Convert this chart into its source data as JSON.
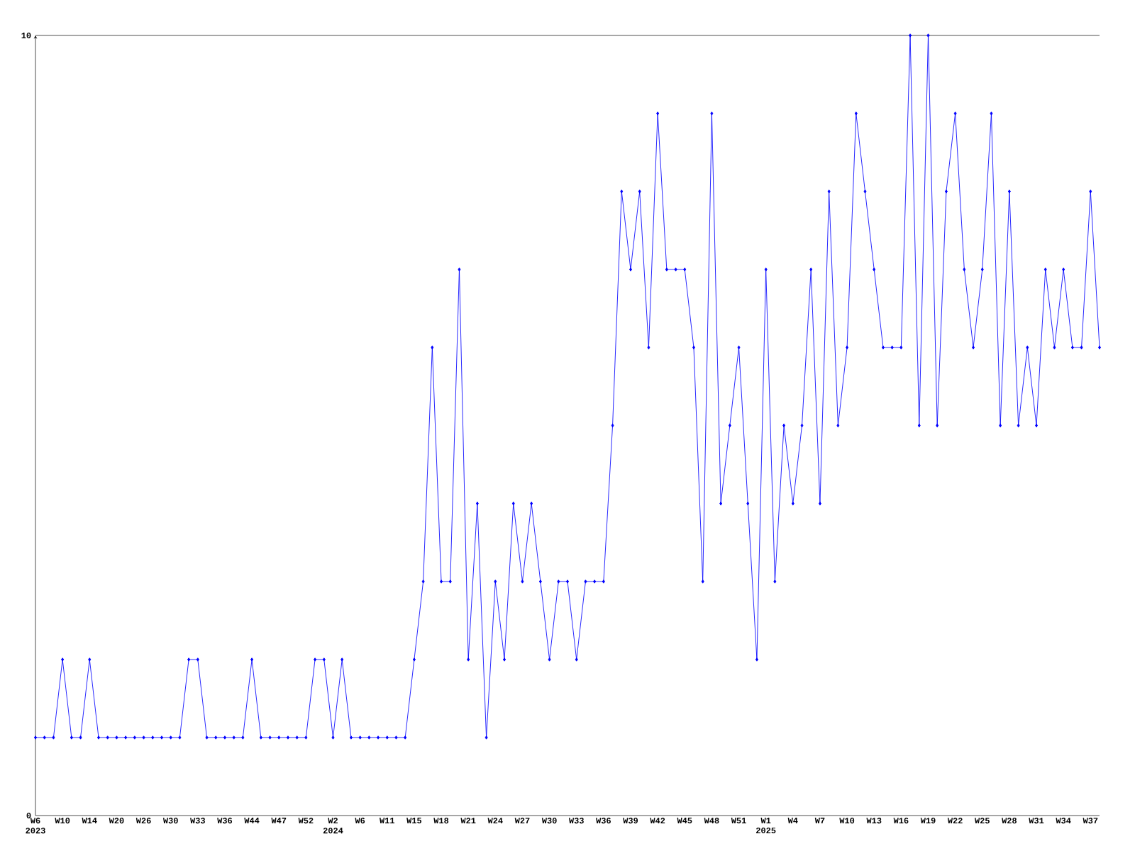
{
  "chart_data": {
    "type": "line",
    "categories": [
      "W6 2023",
      null,
      null,
      "W10",
      null,
      null,
      "W14",
      null,
      null,
      "W20",
      null,
      null,
      "W26",
      null,
      null,
      "W30",
      null,
      null,
      "W33",
      null,
      null,
      "W36",
      null,
      null,
      "W44",
      null,
      null,
      "W47",
      null,
      null,
      "W52",
      null,
      null,
      "W2 2024",
      null,
      null,
      "W6",
      null,
      null,
      "W11",
      null,
      null,
      "W15",
      null,
      null,
      "W18",
      null,
      null,
      "W21",
      null,
      null,
      "W24",
      null,
      null,
      "W27",
      null,
      null,
      "W30",
      null,
      null,
      "W33",
      null,
      null,
      "W36",
      null,
      null,
      "W39",
      null,
      null,
      "W42",
      null,
      null,
      "W45",
      null,
      null,
      "W48",
      null,
      null,
      "W51",
      null,
      null,
      "W1 2025",
      null,
      null,
      "W4",
      null,
      null,
      "W7",
      null,
      null,
      "W10",
      null,
      null,
      "W13",
      null,
      null,
      "W16",
      null,
      null,
      "W19",
      null,
      null,
      "W22",
      null,
      null,
      "W25",
      null,
      null,
      "W28",
      null,
      null,
      "W31",
      null,
      null,
      "W34",
      null,
      null,
      "W37",
      null
    ],
    "values": [
      1,
      1,
      1,
      2,
      1,
      1,
      2,
      1,
      1,
      1,
      1,
      1,
      1,
      1,
      1,
      1,
      1,
      2,
      2,
      1,
      1,
      1,
      1,
      1,
      2,
      1,
      1,
      1,
      1,
      1,
      1,
      2,
      2,
      1,
      2,
      1,
      1,
      1,
      1,
      1,
      1,
      1,
      2,
      3,
      6,
      3,
      3,
      7,
      2,
      4,
      1,
      3,
      2,
      4,
      3,
      4,
      3,
      2,
      3,
      3,
      2,
      3,
      3,
      3,
      5,
      8,
      7,
      8,
      6,
      9,
      7,
      7,
      7,
      6,
      3,
      9,
      4,
      5,
      6,
      4,
      2,
      7,
      3,
      5,
      4,
      5,
      7,
      4,
      8,
      5,
      6,
      9,
      8,
      7,
      6,
      6,
      6,
      10,
      5,
      10,
      5,
      8,
      9,
      7,
      6,
      7,
      9,
      5,
      8,
      5,
      6,
      5,
      7,
      6,
      7,
      6,
      6,
      8,
      6
    ],
    "color": "#0000ff",
    "ylim": [
      0,
      10
    ],
    "yticks": [
      0,
      10
    ],
    "marker": "diamond",
    "line_style": "solid"
  }
}
